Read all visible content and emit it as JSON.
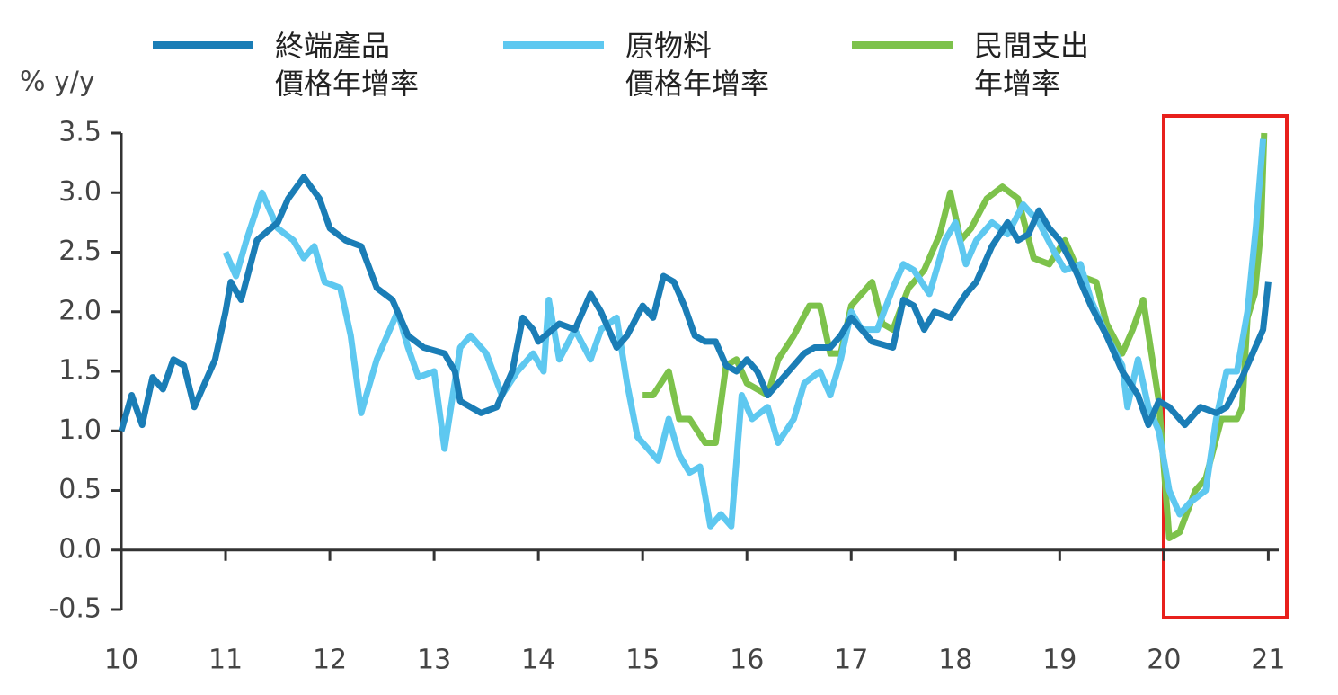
{
  "chart_data": {
    "type": "line",
    "y_label": "% y/y",
    "xlim": [
      10,
      21.1
    ],
    "xticks": [
      10,
      11,
      12,
      13,
      14,
      15,
      16,
      17,
      18,
      19,
      20,
      21
    ],
    "ylim": [
      -0.5,
      3.5
    ],
    "yticks": [
      {
        "value": -0.5,
        "label": "-0.5"
      },
      {
        "value": 0,
        "label": "0.0"
      },
      0.5,
      {
        "value": 1,
        "label": "1.0"
      },
      1.5,
      {
        "value": 2,
        "label": "2.0"
      },
      2.5,
      {
        "value": 3,
        "label": "3.0"
      },
      3.5
    ],
    "series": [
      {
        "name": "終端產品\n價格年增率",
        "color": "#1a7db6",
        "x": [
          10.0,
          10.1,
          10.2,
          10.3,
          10.4,
          10.5,
          10.6,
          10.7,
          10.9,
          11.0,
          11.05,
          11.15,
          11.3,
          11.5,
          11.6,
          11.75,
          11.9,
          12.0,
          12.15,
          12.3,
          12.45,
          12.6,
          12.75,
          12.9,
          13.1,
          13.2,
          13.25,
          13.45,
          13.6,
          13.75,
          13.85,
          13.95,
          14.0,
          14.2,
          14.35,
          14.5,
          14.6,
          14.75,
          14.85,
          15.0,
          15.1,
          15.2,
          15.3,
          15.4,
          15.5,
          15.6,
          15.7,
          15.8,
          15.9,
          16.0,
          16.1,
          16.2,
          16.3,
          16.4,
          16.55,
          16.65,
          16.8,
          16.9,
          17.0,
          17.1,
          17.2,
          17.4,
          17.5,
          17.6,
          17.7,
          17.8,
          17.95,
          18.1,
          18.2,
          18.35,
          18.5,
          18.6,
          18.7,
          18.8,
          18.9,
          19.0,
          19.15,
          19.3,
          19.45,
          19.6,
          19.75,
          19.85,
          19.95,
          20.05,
          20.2,
          20.35,
          20.5,
          20.6,
          20.75,
          20.85,
          20.95,
          21.0
        ],
        "values": [
          1.0,
          1.3,
          1.05,
          1.45,
          1.35,
          1.6,
          1.55,
          1.2,
          1.6,
          2.0,
          2.25,
          2.1,
          2.6,
          2.75,
          2.95,
          3.13,
          2.95,
          2.7,
          2.6,
          2.55,
          2.2,
          2.1,
          1.8,
          1.7,
          1.65,
          1.5,
          1.25,
          1.15,
          1.2,
          1.5,
          1.95,
          1.85,
          1.75,
          1.9,
          1.85,
          2.15,
          2.0,
          1.7,
          1.8,
          2.05,
          1.95,
          2.3,
          2.25,
          2.05,
          1.8,
          1.75,
          1.75,
          1.55,
          1.5,
          1.6,
          1.5,
          1.3,
          1.4,
          1.5,
          1.65,
          1.7,
          1.7,
          1.8,
          1.95,
          1.85,
          1.75,
          1.7,
          2.1,
          2.05,
          1.85,
          2.0,
          1.95,
          2.15,
          2.25,
          2.55,
          2.75,
          2.6,
          2.65,
          2.85,
          2.7,
          2.6,
          2.35,
          2.05,
          1.8,
          1.5,
          1.3,
          1.05,
          1.25,
          1.2,
          1.05,
          1.2,
          1.15,
          1.2,
          1.45,
          1.65,
          1.85,
          2.25
        ]
      },
      {
        "name": "原物料\n價格年增率",
        "color": "#5ec8f0",
        "x": [
          11.0,
          11.1,
          11.2,
          11.35,
          11.5,
          11.65,
          11.75,
          11.85,
          11.95,
          12.1,
          12.2,
          12.3,
          12.45,
          12.55,
          12.65,
          12.75,
          12.85,
          13.0,
          13.1,
          13.25,
          13.35,
          13.5,
          13.65,
          13.8,
          13.95,
          14.05,
          14.1,
          14.2,
          14.35,
          14.5,
          14.6,
          14.75,
          14.85,
          14.95,
          15.05,
          15.15,
          15.25,
          15.35,
          15.45,
          15.55,
          15.65,
          15.75,
          15.85,
          15.95,
          16.05,
          16.2,
          16.3,
          16.45,
          16.55,
          16.7,
          16.8,
          16.9,
          17.0,
          17.1,
          17.25,
          17.4,
          17.5,
          17.6,
          17.75,
          17.9,
          18.0,
          18.1,
          18.2,
          18.35,
          18.5,
          18.65,
          18.8,
          18.95,
          19.05,
          19.2,
          19.3,
          19.45,
          19.6,
          19.65,
          19.75,
          19.85,
          19.95,
          20.05,
          20.15,
          20.25,
          20.4,
          20.5,
          20.6,
          20.7,
          20.8,
          20.88,
          20.95
        ],
        "values": [
          2.5,
          2.3,
          2.6,
          3.0,
          2.7,
          2.6,
          2.45,
          2.55,
          2.25,
          2.2,
          1.8,
          1.15,
          1.6,
          1.8,
          2.0,
          1.7,
          1.45,
          1.5,
          0.85,
          1.7,
          1.8,
          1.65,
          1.3,
          1.5,
          1.65,
          1.5,
          2.1,
          1.6,
          1.85,
          1.6,
          1.85,
          1.95,
          1.4,
          0.95,
          0.85,
          0.75,
          1.1,
          0.8,
          0.65,
          0.7,
          0.2,
          0.3,
          0.2,
          1.3,
          1.1,
          1.2,
          0.9,
          1.1,
          1.4,
          1.5,
          1.3,
          1.6,
          2.0,
          1.85,
          1.85,
          2.2,
          2.4,
          2.35,
          2.15,
          2.6,
          2.75,
          2.4,
          2.6,
          2.75,
          2.65,
          2.9,
          2.75,
          2.5,
          2.35,
          2.4,
          2.1,
          1.8,
          1.55,
          1.2,
          1.6,
          1.2,
          1.0,
          0.5,
          0.3,
          0.4,
          0.5,
          1.1,
          1.5,
          1.5,
          2.0,
          2.7,
          3.45
        ]
      },
      {
        "name": "民間支出\n年增率",
        "color": "#7dc24b",
        "x": [
          15.0,
          15.1,
          15.25,
          15.35,
          15.45,
          15.6,
          15.7,
          15.8,
          15.9,
          16.0,
          16.1,
          16.2,
          16.3,
          16.45,
          16.6,
          16.7,
          16.8,
          16.9,
          17.0,
          17.2,
          17.3,
          17.4,
          17.55,
          17.7,
          17.85,
          17.95,
          18.05,
          18.15,
          18.3,
          18.45,
          18.6,
          18.75,
          18.9,
          19.05,
          19.2,
          19.35,
          19.45,
          19.6,
          19.7,
          19.8,
          19.95,
          20.05,
          20.15,
          20.3,
          20.4,
          20.55,
          20.7,
          20.75,
          20.8,
          20.87,
          20.93,
          20.96
        ],
        "values": [
          1.3,
          1.3,
          1.5,
          1.1,
          1.1,
          0.9,
          0.9,
          1.55,
          1.6,
          1.4,
          1.35,
          1.3,
          1.6,
          1.8,
          2.05,
          2.05,
          1.65,
          1.65,
          2.05,
          2.25,
          1.9,
          1.85,
          2.2,
          2.35,
          2.65,
          3.0,
          2.6,
          2.7,
          2.95,
          3.05,
          2.95,
          2.45,
          2.4,
          2.6,
          2.3,
          2.25,
          1.9,
          1.65,
          1.85,
          2.1,
          1.25,
          0.1,
          0.15,
          0.5,
          0.6,
          1.1,
          1.1,
          1.2,
          1.95,
          2.15,
          2.7,
          3.5
        ]
      }
    ]
  }
}
